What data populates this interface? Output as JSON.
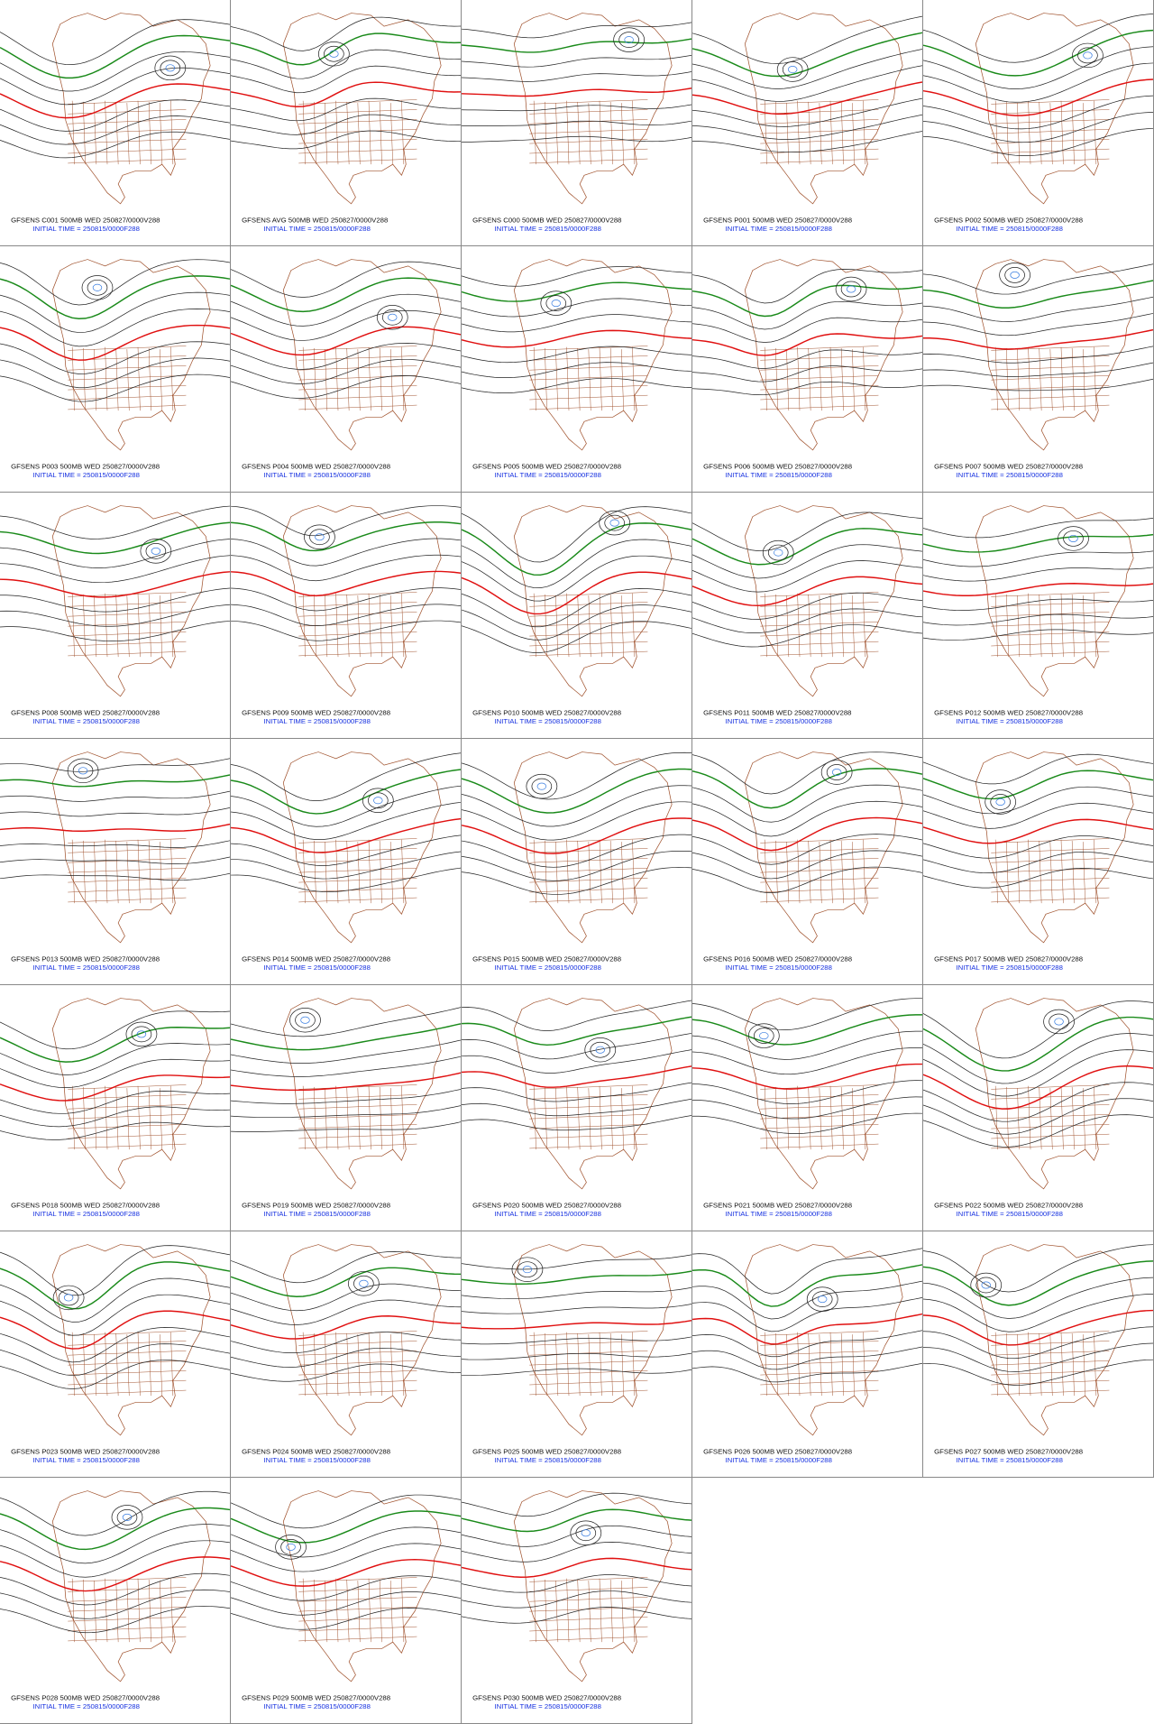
{
  "panels": [
    {
      "label": "GFSENS C001 500MB WED 250827/0000V288",
      "init": "INITIAL TIME = 250815/0000F288"
    },
    {
      "label": "GFSENS AVG 500MB WED 250827/0000V288",
      "init": "INITIAL TIME = 250815/0000F288"
    },
    {
      "label": "GFSENS C000 500MB WED 250827/0000V288",
      "init": "INITIAL TIME = 250815/0000F288"
    },
    {
      "label": "GFSENS P001 500MB WED 250827/0000V288",
      "init": "INITIAL TIME = 250815/0000F288"
    },
    {
      "label": "GFSENS P002 500MB WED 250827/0000V288",
      "init": "INITIAL TIME = 250815/0000F288"
    },
    {
      "label": "GFSENS P003 500MB WED 250827/0000V288",
      "init": "INITIAL TIME = 250815/0000F288"
    },
    {
      "label": "GFSENS P004 500MB WED 250827/0000V288",
      "init": "INITIAL TIME = 250815/0000F288"
    },
    {
      "label": "GFSENS P005 500MB WED 250827/0000V288",
      "init": "INITIAL TIME = 250815/0000F288"
    },
    {
      "label": "GFSENS P006 500MB WED 250827/0000V288",
      "init": "INITIAL TIME = 250815/0000F288"
    },
    {
      "label": "GFSENS P007 500MB WED 250827/0000V288",
      "init": "INITIAL TIME = 250815/0000F288"
    },
    {
      "label": "GFSENS P008 500MB WED 250827/0000V288",
      "init": "INITIAL TIME = 250815/0000F288"
    },
    {
      "label": "GFSENS P009 500MB WED 250827/0000V288",
      "init": "INITIAL TIME = 250815/0000F288"
    },
    {
      "label": "GFSENS P010 500MB WED 250827/0000V288",
      "init": "INITIAL TIME = 250815/0000F288"
    },
    {
      "label": "GFSENS P011 500MB WED 250827/0000V288",
      "init": "INITIAL TIME = 250815/0000F288"
    },
    {
      "label": "GFSENS P012 500MB WED 250827/0000V288",
      "init": "INITIAL TIME = 250815/0000F288"
    },
    {
      "label": "GFSENS P013 500MB WED 250827/0000V288",
      "init": "INITIAL TIME = 250815/0000F288"
    },
    {
      "label": "GFSENS P014 500MB WED 250827/0000V288",
      "init": "INITIAL TIME = 250815/0000F288"
    },
    {
      "label": "GFSENS P015 500MB WED 250827/0000V288",
      "init": "INITIAL TIME = 250815/0000F288"
    },
    {
      "label": "GFSENS P016 500MB WED 250827/0000V288",
      "init": "INITIAL TIME = 250815/0000F288"
    },
    {
      "label": "GFSENS P017 500MB WED 250827/0000V288",
      "init": "INITIAL TIME = 250815/0000F288"
    },
    {
      "label": "GFSENS P018 500MB WED 250827/0000V288",
      "init": "INITIAL TIME = 250815/0000F288"
    },
    {
      "label": "GFSENS P019 500MB WED 250827/0000V288",
      "init": "INITIAL TIME = 250815/0000F288"
    },
    {
      "label": "GFSENS P020 500MB WED 250827/0000V288",
      "init": "INITIAL TIME = 250815/0000F288"
    },
    {
      "label": "GFSENS P021 500MB WED 250827/0000V288",
      "init": "INITIAL TIME = 250815/0000F288"
    },
    {
      "label": "GFSENS P022 500MB WED 250827/0000V288",
      "init": "INITIAL TIME = 250815/0000F288"
    },
    {
      "label": "GFSENS P023 500MB WED 250827/0000V288",
      "init": "INITIAL TIME = 250815/0000F288"
    },
    {
      "label": "GFSENS P024 500MB WED 250827/0000V288",
      "init": "INITIAL TIME = 250815/0000F288"
    },
    {
      "label": "GFSENS P025 500MB WED 250827/0000V288",
      "init": "INITIAL TIME = 250815/0000F288"
    },
    {
      "label": "GFSENS P026 500MB WED 250827/0000V288",
      "init": "INITIAL TIME = 250815/0000F288"
    },
    {
      "label": "GFSENS P027 500MB WED 250827/0000V288",
      "init": "INITIAL TIME = 250815/0000F288"
    },
    {
      "label": "GFSENS P028 500MB WED 250827/0000V288",
      "init": "INITIAL TIME = 250815/0000F288"
    },
    {
      "label": "GFSENS P029 500MB WED 250827/0000V288",
      "init": "INITIAL TIME = 250815/0000F288"
    },
    {
      "label": "GFSENS P030 500MB WED 250827/0000V288",
      "init": "INITIAL TIME = 250815/0000F288"
    }
  ]
}
